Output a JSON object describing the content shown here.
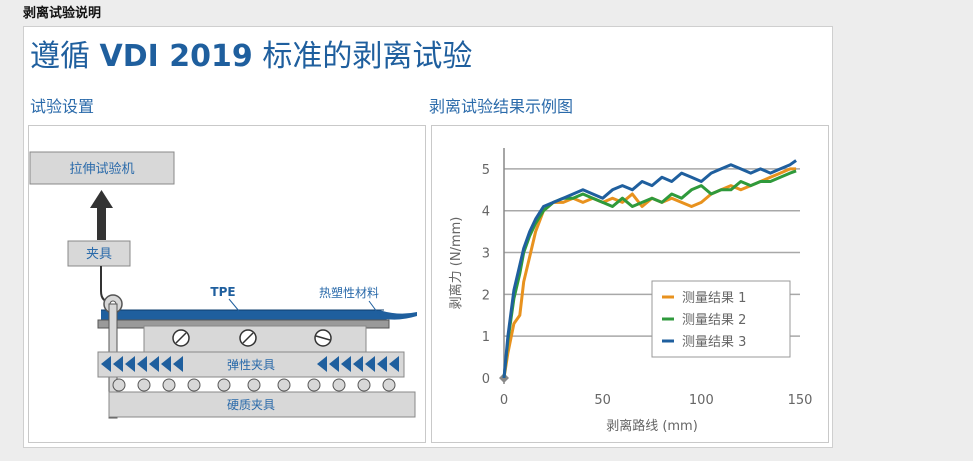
{
  "header": {
    "title": "剥离试验说明"
  },
  "main": {
    "title_prefix": "遵循",
    "title_bold": "VDI 2019",
    "title_suffix": "标准的剥离试验",
    "left_title": "试验设置",
    "right_title": "剥离试验结果示例图"
  },
  "setup": {
    "machine": "拉伸试验机",
    "clamp": "夹具",
    "tpe": "TPE",
    "thermoplastic": "热塑性材料",
    "elastic_clamp": "弹性夹具",
    "hard_clamp": "硬质夹具",
    "colors": {
      "box_fill": "#d8d8d8",
      "box_stroke": "#888888",
      "text": "#2a6aaa",
      "plate": "#1f5f9e",
      "arrow": "#1f5f9e"
    }
  },
  "chart_data": {
    "type": "line",
    "title": "",
    "xlabel": "剥离路线 (mm)",
    "ylabel": "剥离力 (N/mm)",
    "xlim": [
      0,
      150
    ],
    "ylim": [
      0,
      5.5
    ],
    "xticks": [
      0,
      50,
      100,
      150
    ],
    "yticks": [
      0,
      1,
      2,
      3,
      4,
      5
    ],
    "grid": "horizontal",
    "legend_position": "bottom-right",
    "series": [
      {
        "name": "测量结果  1",
        "color": "#e8921e",
        "x": [
          0,
          2,
          5,
          8,
          10,
          13,
          16,
          20,
          25,
          30,
          35,
          40,
          45,
          50,
          55,
          60,
          65,
          70,
          75,
          80,
          85,
          90,
          95,
          100,
          105,
          110,
          115,
          120,
          125,
          130,
          135,
          140,
          145,
          148
        ],
        "y": [
          0,
          0.6,
          1.3,
          1.5,
          2.3,
          2.9,
          3.5,
          4.0,
          4.2,
          4.2,
          4.3,
          4.2,
          4.3,
          4.2,
          4.3,
          4.2,
          4.4,
          4.1,
          4.3,
          4.2,
          4.3,
          4.2,
          4.1,
          4.2,
          4.4,
          4.5,
          4.6,
          4.5,
          4.6,
          4.7,
          4.8,
          4.9,
          5.0,
          5.0
        ]
      },
      {
        "name": "测量结果  2",
        "color": "#2f9a3c",
        "x": [
          0,
          2,
          5,
          8,
          10,
          13,
          16,
          20,
          25,
          30,
          35,
          40,
          45,
          50,
          55,
          60,
          65,
          70,
          75,
          80,
          85,
          90,
          95,
          100,
          105,
          110,
          115,
          120,
          125,
          130,
          135,
          140,
          145,
          148
        ],
        "y": [
          0,
          0.9,
          1.9,
          2.5,
          3.0,
          3.4,
          3.7,
          4.0,
          4.2,
          4.3,
          4.3,
          4.4,
          4.3,
          4.2,
          4.1,
          4.3,
          4.1,
          4.2,
          4.3,
          4.2,
          4.4,
          4.3,
          4.5,
          4.6,
          4.4,
          4.5,
          4.5,
          4.7,
          4.6,
          4.7,
          4.7,
          4.8,
          4.9,
          4.95
        ]
      },
      {
        "name": "测量结果  3",
        "color": "#1f5f9e",
        "x": [
          0,
          2,
          5,
          8,
          10,
          13,
          16,
          20,
          25,
          30,
          35,
          40,
          45,
          50,
          55,
          60,
          65,
          70,
          75,
          80,
          85,
          90,
          95,
          100,
          105,
          110,
          115,
          120,
          125,
          130,
          135,
          140,
          145,
          148
        ],
        "y": [
          0,
          1.0,
          2.1,
          2.7,
          3.1,
          3.5,
          3.8,
          4.1,
          4.2,
          4.3,
          4.4,
          4.5,
          4.4,
          4.3,
          4.5,
          4.6,
          4.5,
          4.7,
          4.6,
          4.8,
          4.7,
          4.9,
          4.8,
          4.7,
          4.9,
          5.0,
          5.1,
          5.0,
          4.9,
          5.0,
          4.9,
          5.0,
          5.1,
          5.2
        ]
      }
    ]
  }
}
